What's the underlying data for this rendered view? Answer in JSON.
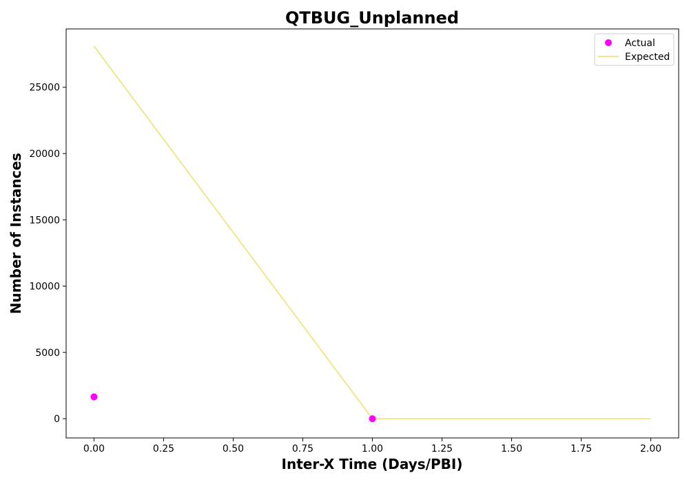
{
  "chart_data": {
    "type": "scatter",
    "title": "QTBUG_Unplanned",
    "xlabel": "Inter-X Time (Days/PBI)",
    "ylabel": "Number of Instances",
    "xlim": [
      -0.1,
      2.1
    ],
    "ylim": [
      -1450,
      29400
    ],
    "xticks": [
      0.0,
      0.25,
      0.5,
      0.75,
      1.0,
      1.25,
      1.5,
      1.75,
      2.0
    ],
    "xtick_labels": [
      "0.00",
      "0.25",
      "0.50",
      "0.75",
      "1.00",
      "1.25",
      "1.50",
      "1.75",
      "2.00"
    ],
    "yticks": [
      0,
      5000,
      10000,
      15000,
      20000,
      25000
    ],
    "ytick_labels": [
      "0",
      "5000",
      "10000",
      "15000",
      "20000",
      "25000"
    ],
    "grid": false,
    "legend_position": "top-right",
    "series": [
      {
        "name": "Actual",
        "kind": "scatter",
        "color": "#ff00ff",
        "x": [
          0,
          1
        ],
        "y": [
          1650,
          0
        ]
      },
      {
        "name": "Expected",
        "kind": "line",
        "color": "#f0e68c",
        "x": [
          0,
          1,
          2
        ],
        "y": [
          28100,
          0,
          0
        ]
      }
    ]
  }
}
